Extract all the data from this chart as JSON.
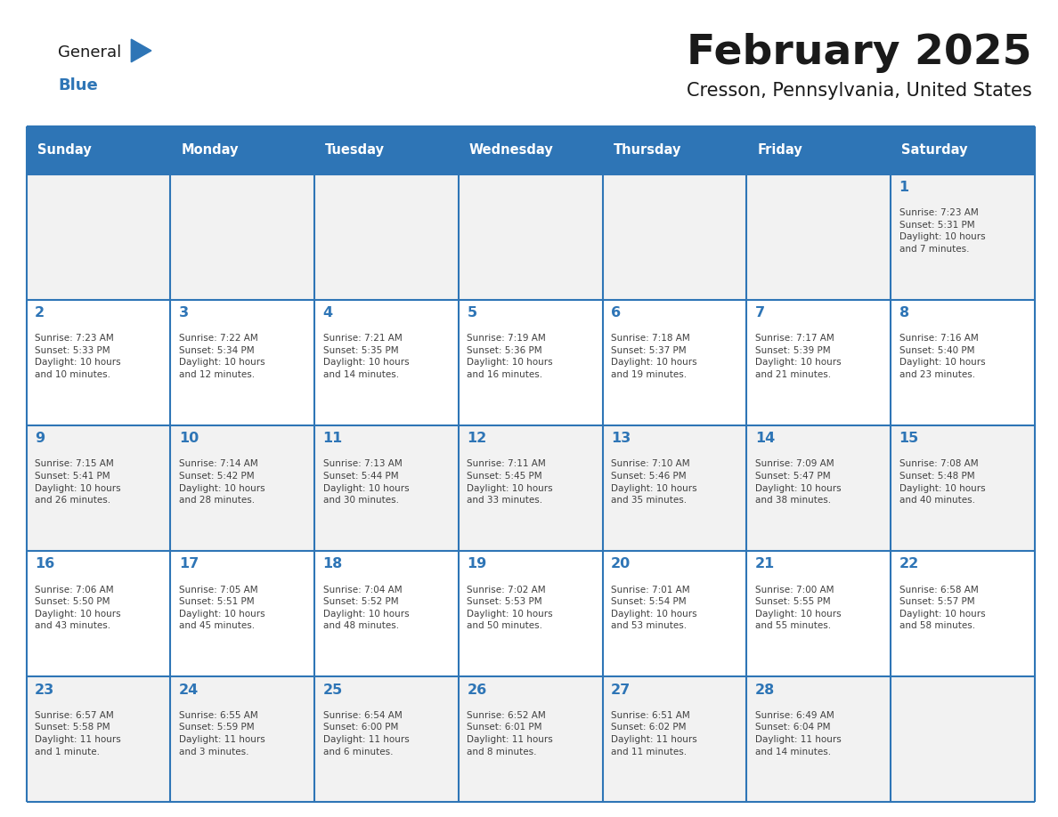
{
  "title": "February 2025",
  "subtitle": "Cresson, Pennsylvania, United States",
  "header_bg": "#2E75B6",
  "header_text_color": "#FFFFFF",
  "cell_border_color": "#2E75B6",
  "day_number_color": "#2E75B6",
  "info_text_color": "#404040",
  "background_color": "#FFFFFF",
  "odd_row_bg": "#F2F2F2",
  "even_row_bg": "#FFFFFF",
  "days_of_week": [
    "Sunday",
    "Monday",
    "Tuesday",
    "Wednesday",
    "Thursday",
    "Friday",
    "Saturday"
  ],
  "weeks": [
    [
      {
        "day": "",
        "sunrise": "",
        "sunset": "",
        "daylight": ""
      },
      {
        "day": "",
        "sunrise": "",
        "sunset": "",
        "daylight": ""
      },
      {
        "day": "",
        "sunrise": "",
        "sunset": "",
        "daylight": ""
      },
      {
        "day": "",
        "sunrise": "",
        "sunset": "",
        "daylight": ""
      },
      {
        "day": "",
        "sunrise": "",
        "sunset": "",
        "daylight": ""
      },
      {
        "day": "",
        "sunrise": "",
        "sunset": "",
        "daylight": ""
      },
      {
        "day": "1",
        "sunrise": "7:23 AM",
        "sunset": "5:31 PM",
        "daylight": "10 hours\nand 7 minutes."
      }
    ],
    [
      {
        "day": "2",
        "sunrise": "7:23 AM",
        "sunset": "5:33 PM",
        "daylight": "10 hours\nand 10 minutes."
      },
      {
        "day": "3",
        "sunrise": "7:22 AM",
        "sunset": "5:34 PM",
        "daylight": "10 hours\nand 12 minutes."
      },
      {
        "day": "4",
        "sunrise": "7:21 AM",
        "sunset": "5:35 PM",
        "daylight": "10 hours\nand 14 minutes."
      },
      {
        "day": "5",
        "sunrise": "7:19 AM",
        "sunset": "5:36 PM",
        "daylight": "10 hours\nand 16 minutes."
      },
      {
        "day": "6",
        "sunrise": "7:18 AM",
        "sunset": "5:37 PM",
        "daylight": "10 hours\nand 19 minutes."
      },
      {
        "day": "7",
        "sunrise": "7:17 AM",
        "sunset": "5:39 PM",
        "daylight": "10 hours\nand 21 minutes."
      },
      {
        "day": "8",
        "sunrise": "7:16 AM",
        "sunset": "5:40 PM",
        "daylight": "10 hours\nand 23 minutes."
      }
    ],
    [
      {
        "day": "9",
        "sunrise": "7:15 AM",
        "sunset": "5:41 PM",
        "daylight": "10 hours\nand 26 minutes."
      },
      {
        "day": "10",
        "sunrise": "7:14 AM",
        "sunset": "5:42 PM",
        "daylight": "10 hours\nand 28 minutes."
      },
      {
        "day": "11",
        "sunrise": "7:13 AM",
        "sunset": "5:44 PM",
        "daylight": "10 hours\nand 30 minutes."
      },
      {
        "day": "12",
        "sunrise": "7:11 AM",
        "sunset": "5:45 PM",
        "daylight": "10 hours\nand 33 minutes."
      },
      {
        "day": "13",
        "sunrise": "7:10 AM",
        "sunset": "5:46 PM",
        "daylight": "10 hours\nand 35 minutes."
      },
      {
        "day": "14",
        "sunrise": "7:09 AM",
        "sunset": "5:47 PM",
        "daylight": "10 hours\nand 38 minutes."
      },
      {
        "day": "15",
        "sunrise": "7:08 AM",
        "sunset": "5:48 PM",
        "daylight": "10 hours\nand 40 minutes."
      }
    ],
    [
      {
        "day": "16",
        "sunrise": "7:06 AM",
        "sunset": "5:50 PM",
        "daylight": "10 hours\nand 43 minutes."
      },
      {
        "day": "17",
        "sunrise": "7:05 AM",
        "sunset": "5:51 PM",
        "daylight": "10 hours\nand 45 minutes."
      },
      {
        "day": "18",
        "sunrise": "7:04 AM",
        "sunset": "5:52 PM",
        "daylight": "10 hours\nand 48 minutes."
      },
      {
        "day": "19",
        "sunrise": "7:02 AM",
        "sunset": "5:53 PM",
        "daylight": "10 hours\nand 50 minutes."
      },
      {
        "day": "20",
        "sunrise": "7:01 AM",
        "sunset": "5:54 PM",
        "daylight": "10 hours\nand 53 minutes."
      },
      {
        "day": "21",
        "sunrise": "7:00 AM",
        "sunset": "5:55 PM",
        "daylight": "10 hours\nand 55 minutes."
      },
      {
        "day": "22",
        "sunrise": "6:58 AM",
        "sunset": "5:57 PM",
        "daylight": "10 hours\nand 58 minutes."
      }
    ],
    [
      {
        "day": "23",
        "sunrise": "6:57 AM",
        "sunset": "5:58 PM",
        "daylight": "11 hours\nand 1 minute."
      },
      {
        "day": "24",
        "sunrise": "6:55 AM",
        "sunset": "5:59 PM",
        "daylight": "11 hours\nand 3 minutes."
      },
      {
        "day": "25",
        "sunrise": "6:54 AM",
        "sunset": "6:00 PM",
        "daylight": "11 hours\nand 6 minutes."
      },
      {
        "day": "26",
        "sunrise": "6:52 AM",
        "sunset": "6:01 PM",
        "daylight": "11 hours\nand 8 minutes."
      },
      {
        "day": "27",
        "sunrise": "6:51 AM",
        "sunset": "6:02 PM",
        "daylight": "11 hours\nand 11 minutes."
      },
      {
        "day": "28",
        "sunrise": "6:49 AM",
        "sunset": "6:04 PM",
        "daylight": "11 hours\nand 14 minutes."
      },
      {
        "day": "",
        "sunrise": "",
        "sunset": "",
        "daylight": ""
      }
    ]
  ]
}
